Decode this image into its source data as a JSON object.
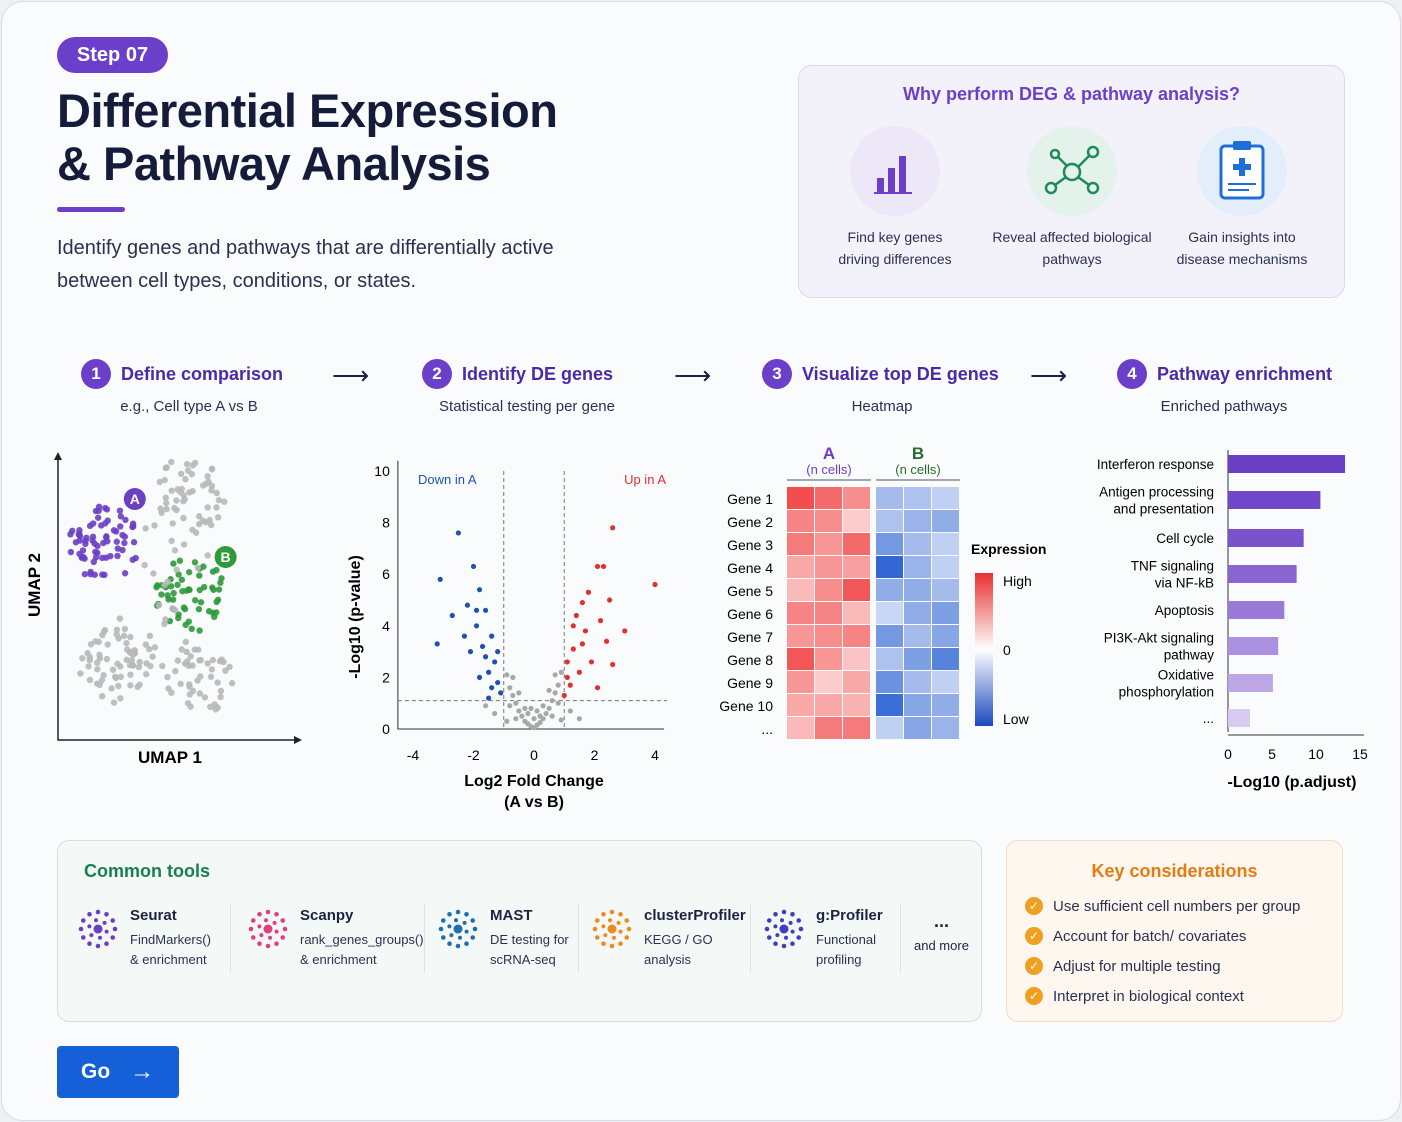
{
  "header": {
    "step": "Step 07",
    "title_line1": "Differential Expression",
    "title_line2": "& Pathway Analysis",
    "description_line1": "Identify genes and pathways that are differentially active",
    "description_line2": "between cell types, conditions, or states."
  },
  "why": {
    "title": "Why perform DEG & pathway analysis?",
    "items": [
      {
        "icon": "bar-chart-icon",
        "line1": "Find key genes",
        "line2": "driving differences",
        "color": "#ece8f8"
      },
      {
        "icon": "network-icon",
        "line1": "Reveal affected biological",
        "line2": "pathways",
        "color": "#e4f2ec"
      },
      {
        "icon": "clipboard-icon",
        "line1": "Gain insights into",
        "line2": "disease mechanisms",
        "color": "#e4eefa"
      }
    ]
  },
  "steps": [
    {
      "num": "1",
      "title": "Define comparison",
      "subtitle": "e.g., Cell type A vs B"
    },
    {
      "num": "2",
      "title": "Identify DE genes",
      "subtitle": "Statistical testing per gene"
    },
    {
      "num": "3",
      "title": "Visualize top DE genes",
      "subtitle": "Heatmap"
    },
    {
      "num": "4",
      "title": "Pathway enrichment",
      "subtitle": "Enriched pathways"
    }
  ],
  "arrow": "⟶",
  "chart_data": [
    {
      "type": "scatter",
      "name": "umap",
      "xlabel": "UMAP 1",
      "ylabel": "UMAP 2",
      "clusters": [
        {
          "label": "A",
          "color": "#6a3fc4",
          "center": [
            1.7,
            6.6
          ],
          "n": 70
        },
        {
          "label": "B",
          "color": "#2e9a3a",
          "center": [
            5.4,
            4.9
          ],
          "n": 55
        },
        {
          "label": "",
          "color": "#b8b8b8",
          "center": [
            5.4,
            8.3
          ],
          "n": 50
        },
        {
          "label": "",
          "color": "#b8b8b8",
          "center": [
            2.2,
            2.5
          ],
          "n": 60
        },
        {
          "label": "",
          "color": "#b8b8b8",
          "center": [
            5.7,
            2.2
          ],
          "n": 45
        },
        {
          "label": "",
          "color": "#b8b8b8",
          "center": [
            4.6,
            6.4
          ],
          "n": 15
        },
        {
          "label": "",
          "color": "#b8b8b8",
          "center": [
            3.7,
            3.6
          ],
          "n": 15
        }
      ]
    },
    {
      "type": "scatter",
      "name": "volcano",
      "xlabel": "Log2 Fold Change",
      "xlabel2": "(A vs B)",
      "ylabel": "-Log10 (p-value)",
      "xlim": [
        -4.5,
        4.5
      ],
      "ylim": [
        0,
        10
      ],
      "xticks": [
        -4,
        -2,
        0,
        2,
        4
      ],
      "yticks": [
        0,
        2,
        4,
        6,
        8,
        10
      ],
      "thresholds": {
        "fc": 1,
        "p": 1.1
      },
      "annotations": {
        "down": "Down in A",
        "up": "Up in A"
      },
      "colors": {
        "down": "#1d52b0",
        "up": "#e03030",
        "ns": "#a8a8a8"
      },
      "down": [
        [
          -2.5,
          7.6
        ],
        [
          -3.1,
          5.8
        ],
        [
          -2.0,
          6.3
        ],
        [
          -1.8,
          5.4
        ],
        [
          -2.7,
          4.4
        ],
        [
          -3.2,
          3.3
        ],
        [
          -2.2,
          4.8
        ],
        [
          -1.6,
          4.6
        ],
        [
          -1.9,
          4.0
        ],
        [
          -1.4,
          3.6
        ],
        [
          -1.7,
          3.2
        ],
        [
          -2.1,
          3.0
        ],
        [
          -1.3,
          2.6
        ],
        [
          -1.5,
          2.2
        ],
        [
          -1.2,
          1.8
        ],
        [
          -1.8,
          2.0
        ],
        [
          -1.1,
          1.4
        ],
        [
          -1.4,
          1.6
        ],
        [
          -2.3,
          3.6
        ],
        [
          -1.6,
          2.8
        ],
        [
          -1.2,
          3.0
        ],
        [
          -1.9,
          4.6
        ],
        [
          -1.5,
          1.2
        ]
      ],
      "up": [
        [
          2.6,
          7.8
        ],
        [
          2.1,
          6.3
        ],
        [
          2.3,
          6.3
        ],
        [
          4.0,
          5.6
        ],
        [
          1.8,
          5.3
        ],
        [
          2.5,
          5.0
        ],
        [
          1.6,
          4.9
        ],
        [
          2.2,
          4.2
        ],
        [
          3.0,
          3.8
        ],
        [
          1.4,
          4.4
        ],
        [
          1.7,
          3.8
        ],
        [
          2.4,
          3.4
        ],
        [
          1.3,
          3.1
        ],
        [
          1.9,
          2.6
        ],
        [
          2.6,
          2.5
        ],
        [
          1.1,
          2.6
        ],
        [
          1.5,
          2.2
        ],
        [
          1.2,
          1.7
        ],
        [
          2.1,
          1.6
        ],
        [
          1.0,
          1.3
        ],
        [
          1.6,
          3.3
        ],
        [
          1.3,
          4.0
        ],
        [
          1.1,
          2.0
        ]
      ],
      "ns": [
        [
          -0.9,
          2.1
        ],
        [
          -0.8,
          1.6
        ],
        [
          -0.7,
          1.3
        ],
        [
          -0.6,
          1.0
        ],
        [
          -0.5,
          0.7
        ],
        [
          -0.4,
          0.5
        ],
        [
          -0.3,
          0.3
        ],
        [
          -0.2,
          0.2
        ],
        [
          -0.1,
          0.1
        ],
        [
          0,
          0.05
        ],
        [
          0.1,
          0.15
        ],
        [
          0.2,
          0.25
        ],
        [
          0.3,
          0.4
        ],
        [
          0.4,
          0.6
        ],
        [
          0.5,
          0.8
        ],
        [
          0.6,
          1.1
        ],
        [
          0.7,
          1.4
        ],
        [
          0.8,
          1.7
        ],
        [
          0.9,
          2.2
        ],
        [
          -0.6,
          0.4
        ],
        [
          -0.3,
          0.8
        ],
        [
          0.3,
          0.9
        ],
        [
          0.6,
          0.5
        ],
        [
          -0.8,
          0.9
        ],
        [
          0.8,
          1.0
        ],
        [
          -0.2,
          0.6
        ],
        [
          0.2,
          0.5
        ],
        [
          -0.5,
          1.4
        ],
        [
          0.5,
          1.5
        ],
        [
          -1.3,
          0.6
        ],
        [
          1.2,
          0.7
        ],
        [
          -1.6,
          0.9
        ],
        [
          1.5,
          0.4
        ],
        [
          -0.9,
          0.3
        ],
        [
          0.9,
          0.35
        ],
        [
          0,
          0.4
        ],
        [
          -0.1,
          0.8
        ],
        [
          0.1,
          0.7
        ],
        [
          -0.7,
          2.0
        ],
        [
          0.7,
          2.1
        ]
      ]
    },
    {
      "type": "heatmap",
      "name": "heatmap",
      "groups": [
        {
          "label": "A",
          "sub": "(n cells)",
          "color": "#6a3fc4"
        },
        {
          "label": "B",
          "sub": "(n cells)",
          "color": "#2a6a30"
        }
      ],
      "rows": [
        "Gene 1",
        "Gene 2",
        "Gene 3",
        "Gene 4",
        "Gene 5",
        "Gene 6",
        "Gene 7",
        "Gene 8",
        "Gene 9",
        "Gene 10",
        "..."
      ],
      "values": [
        [
          0.9,
          0.75,
          0.55,
          -0.35,
          -0.3,
          -0.2
        ],
        [
          0.6,
          0.55,
          0.2,
          -0.3,
          -0.4,
          -0.45
        ],
        [
          0.65,
          0.5,
          0.75,
          -0.6,
          -0.35,
          -0.2
        ],
        [
          0.4,
          0.5,
          0.45,
          -0.95,
          -0.4,
          -0.2
        ],
        [
          0.3,
          0.55,
          0.85,
          -0.45,
          -0.45,
          -0.35
        ],
        [
          0.6,
          0.6,
          0.3,
          -0.15,
          -0.45,
          -0.55
        ],
        [
          0.5,
          0.55,
          0.6,
          -0.6,
          -0.35,
          -0.5
        ],
        [
          0.85,
          0.5,
          0.25,
          -0.3,
          -0.55,
          -0.75
        ],
        [
          0.5,
          0.2,
          0.4,
          -0.65,
          -0.35,
          -0.2
        ],
        [
          0.4,
          0.4,
          0.35,
          -0.9,
          -0.5,
          -0.45
        ],
        [
          0.3,
          0.65,
          0.65,
          -0.2,
          -0.5,
          -0.4
        ]
      ],
      "legend": {
        "title": "Expression",
        "high": "High",
        "mid": "0",
        "low": "Low"
      }
    },
    {
      "type": "bar",
      "name": "pathway-enrichment",
      "orientation": "horizontal",
      "xlabel": "-Log10 (p.adjust)",
      "xlim": [
        0,
        15
      ],
      "xticks": [
        0,
        5,
        10,
        15
      ],
      "categories": [
        [
          "Interferon response"
        ],
        [
          "Antigen processing",
          "and presentation"
        ],
        [
          "Cell cycle"
        ],
        [
          "TNF signaling",
          "via NF-kB"
        ],
        [
          "Apoptosis"
        ],
        [
          "PI3K-Akt signaling",
          "pathway"
        ],
        [
          "Oxidative",
          "phosphorylation"
        ],
        [
          "..."
        ]
      ],
      "values": [
        13.3,
        10.5,
        8.6,
        7.8,
        6.4,
        5.7,
        5.1,
        2.5
      ],
      "colors": [
        "#6a3fc4",
        "#7047c8",
        "#7a52cc",
        "#8a66d2",
        "#9a7ad8",
        "#aa90de",
        "#bca6e6",
        "#d8cbf2"
      ]
    }
  ],
  "tools": {
    "title": "Common tools",
    "items": [
      {
        "name": "Seurat",
        "line1": "FindMarkers()",
        "line2": "& enrichment",
        "color": "#6a3fc4",
        "icon": "seurat-logo-icon"
      },
      {
        "name": "Scanpy",
        "line1": "rank_genes_groups()",
        "line2": "& enrichment",
        "color": "#e0407a",
        "icon": "scanpy-logo-icon"
      },
      {
        "name": "MAST",
        "line1": "DE testing for",
        "line2": "scRNA-seq",
        "color": "#1f6fb0",
        "icon": "mast-logo-icon"
      },
      {
        "name": "clusterProfiler",
        "line1": "KEGG / GO",
        "line2": "analysis",
        "color": "#f08a1c",
        "icon": "clusterprofiler-logo-icon"
      },
      {
        "name": "g:Profiler",
        "line1": "Functional",
        "line2": "profiling",
        "color": "#3a3fc4",
        "icon": "gprofiler-logo-icon"
      }
    ],
    "more_dots": "...",
    "more": "and more"
  },
  "considerations": {
    "title": "Key considerations",
    "items": [
      "Use sufficient cell numbers per group",
      "Account for batch/ covariates",
      "Adjust for multiple testing",
      "Interpret in biological context"
    ]
  },
  "go_button": {
    "label": "Go",
    "icon": "arrow-right-icon"
  }
}
